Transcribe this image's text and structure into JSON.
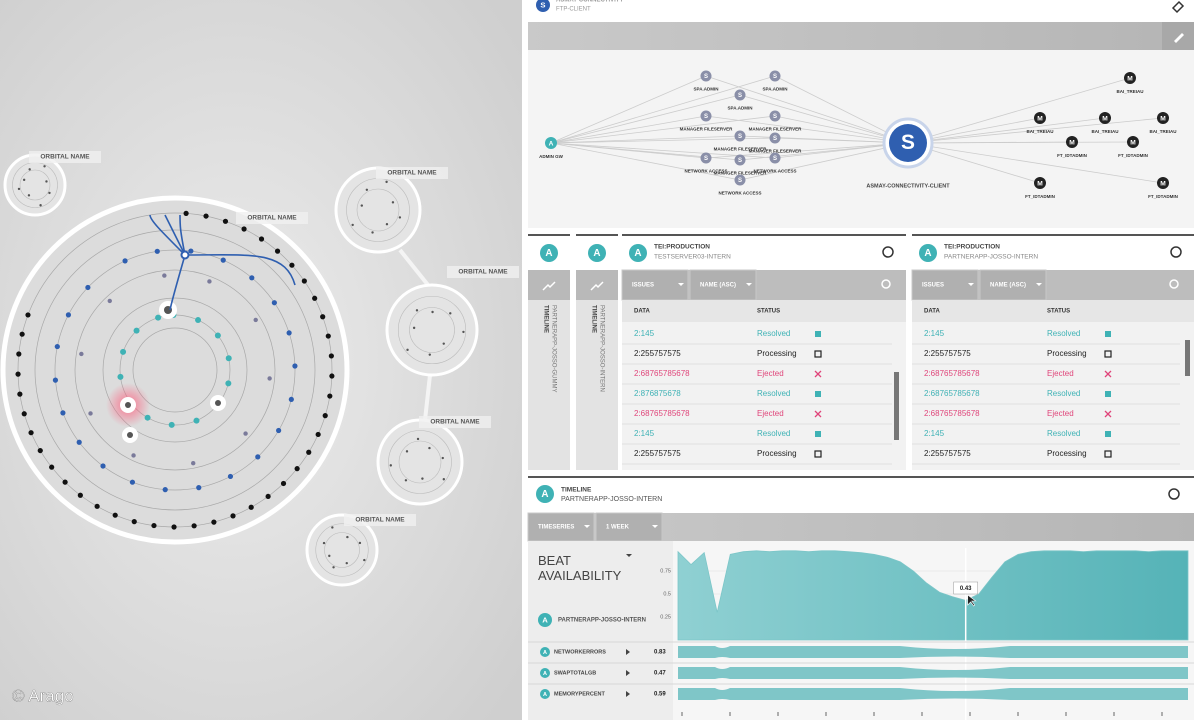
{
  "orbital_view": {
    "labels": [
      "ORBITAL NAME",
      "ORBITAL NAME",
      "ORBITAL NAME",
      "ORBITAL NAME",
      "ORBITAL NAME",
      "ORBITAL NAME"
    ],
    "copyright": "© Arago"
  },
  "topology": {
    "badge": "S",
    "title": "ASMAY-CONNECTIVITY",
    "subtitle": "FTP-CLIENT",
    "center": {
      "letter": "S",
      "label": "ASMAY-CONNECTIVITY-CLIENT"
    },
    "source": {
      "letter": "A",
      "label": "ADMIN GW"
    },
    "nodes": [
      {
        "letter": "S",
        "label": "SPA.ADMIN"
      },
      {
        "letter": "S",
        "label": "SPA.ADMIN"
      },
      {
        "letter": "S",
        "label": "SPA.ADMIN"
      },
      {
        "letter": "S",
        "label": "MANAGER FILESERVER"
      },
      {
        "letter": "S",
        "label": "MANAGER FILESERVER"
      },
      {
        "letter": "S",
        "label": "MANAGER FILESERVER"
      },
      {
        "letter": "S",
        "label": "NETWORK ACCESS"
      },
      {
        "letter": "S",
        "label": "MANAGER FILESERVER"
      },
      {
        "letter": "S",
        "label": "MANAGER FILESERVER"
      },
      {
        "letter": "S",
        "label": "NETWORK ACCESS"
      },
      {
        "letter": "S",
        "label": "NETWORK ACCESS"
      }
    ],
    "targets": [
      {
        "letter": "M",
        "label": "BAI_TREIAU"
      },
      {
        "letter": "M",
        "label": "BAI_TREIAU"
      },
      {
        "letter": "M",
        "label": "BAI_TREIAU"
      },
      {
        "letter": "M",
        "label": "BAI_TREIAU"
      },
      {
        "letter": "M",
        "label": "FT_IDTADMIN"
      },
      {
        "letter": "M",
        "label": "FT_IDTADMIN"
      },
      {
        "letter": "M",
        "label": "FT_IDTADMIN"
      },
      {
        "letter": "M",
        "label": "FT_IDTADMIN"
      }
    ]
  },
  "side_tabs": [
    {
      "badge": "A",
      "title": "TIMELINE",
      "subtitle": "PARTNERAPP-JOSSO-GUMMY"
    },
    {
      "badge": "A",
      "title": "TIMELINE",
      "subtitle": "PARTNERAPP-JOSSO-INTERN"
    }
  ],
  "issue_panels": [
    {
      "badge": "A",
      "title": "TEI:PRODUCTION",
      "subtitle": "TESTSERVER03-INTERN",
      "filters": [
        "ISSUES",
        "NAME (ASC)"
      ],
      "columns": [
        "DATA",
        "STATUS"
      ],
      "rows": [
        {
          "data": "2:145",
          "status": "Resolved",
          "color": "#3fb2b5"
        },
        {
          "data": "2:255757575",
          "status": "Processing",
          "color": "#222222"
        },
        {
          "data": "2:68765785678",
          "status": "Ejected",
          "color": "#e0457a"
        },
        {
          "data": "2:876875678",
          "status": "Resolved",
          "color": "#3fb2b5"
        },
        {
          "data": "2:68765785678",
          "status": "Ejected",
          "color": "#e0457a"
        },
        {
          "data": "2:145",
          "status": "Resolved",
          "color": "#3fb2b5"
        },
        {
          "data": "2:255757575",
          "status": "Processing",
          "color": "#222222"
        }
      ]
    },
    {
      "badge": "A",
      "title": "TEI:PRODUCTION",
      "subtitle": "PARTNERAPP-JOSSO-INTERN",
      "filters": [
        "ISSUES",
        "NAME (ASC)"
      ],
      "columns": [
        "DATA",
        "STATUS"
      ],
      "rows": [
        {
          "data": "2:145",
          "status": "Resolved",
          "color": "#3fb2b5"
        },
        {
          "data": "2:255757575",
          "status": "Processing",
          "color": "#222222"
        },
        {
          "data": "2:68765785678",
          "status": "Ejected",
          "color": "#e0457a"
        },
        {
          "data": "2:68765785678",
          "status": "Resolved",
          "color": "#3fb2b5"
        },
        {
          "data": "2:68765785678",
          "status": "Ejected",
          "color": "#e0457a"
        },
        {
          "data": "2:145",
          "status": "Resolved",
          "color": "#3fb2b5"
        },
        {
          "data": "2:255757575",
          "status": "Processing",
          "color": "#222222"
        }
      ]
    }
  ],
  "timeline": {
    "badge": "A",
    "title": "TIMELINE",
    "subtitle": "PARTNERAPP-JOSSO-INTERN",
    "filters": [
      "TIMESERIES",
      "1 WEEK"
    ],
    "chart_data": {
      "type": "area",
      "title": "BEAT AVAILABILITY",
      "series_badge": "A",
      "series_name": "PARTNERAPP-JOSSO-INTERN",
      "color": "#7cc6c8",
      "values": [
        0.96,
        0.82,
        0.95,
        0.3,
        0.93,
        0.96,
        0.97,
        0.96,
        0.97,
        0.97,
        0.96,
        0.97,
        0.97,
        0.96,
        0.95,
        0.93,
        0.9,
        0.85,
        0.75,
        0.62,
        0.52,
        0.47,
        0.43,
        0.5,
        0.68,
        0.85,
        0.93,
        0.96,
        0.97,
        0.97,
        0.97,
        0.96,
        0.97,
        0.97,
        0.97,
        0.97,
        0.96,
        0.97,
        0.97,
        0.97
      ],
      "ylim": [
        0,
        1
      ],
      "yticks": [
        0.25,
        0.5,
        0.75
      ],
      "cursor": 0.43
    },
    "metrics": [
      {
        "badge": "A",
        "name": "NETWORKERRORS",
        "value": 0.83
      },
      {
        "badge": "A",
        "name": "SWAPTOTALGB",
        "value": 0.47
      },
      {
        "badge": "A",
        "name": "MEMORYPERCENT",
        "value": 0.59
      }
    ]
  }
}
